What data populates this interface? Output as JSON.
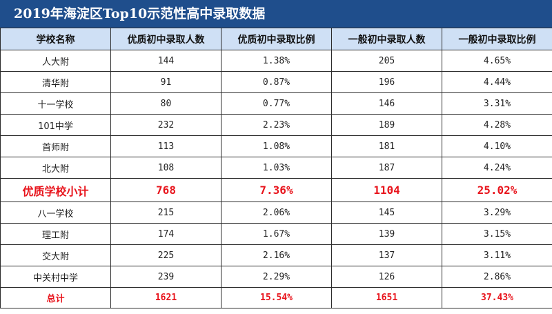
{
  "title": "2019年海淀区Top10示范性高中录取数据",
  "headers": [
    "学校名称",
    "优质初中录取人数",
    "优质初中录取比例",
    "一般初中录取人数",
    "一般初中录取比例"
  ],
  "rows_top": [
    [
      "人大附",
      "144",
      "1.38%",
      "205",
      "4.65%"
    ],
    [
      "清华附",
      "91",
      "0.87%",
      "196",
      "4.44%"
    ],
    [
      "十一学校",
      "80",
      "0.77%",
      "146",
      "3.31%"
    ],
    [
      "101中学",
      "232",
      "2.23%",
      "189",
      "4.28%"
    ],
    [
      "首师附",
      "113",
      "1.08%",
      "181",
      "4.10%"
    ],
    [
      "北大附",
      "108",
      "1.03%",
      "187",
      "4.24%"
    ]
  ],
  "subtotal": [
    "优质学校小计",
    "768",
    "7.36%",
    "1104",
    "25.02%"
  ],
  "rows_bottom": [
    [
      "八一学校",
      "215",
      "2.06%",
      "145",
      "3.29%"
    ],
    [
      "理工附",
      "174",
      "1.67%",
      "139",
      "3.15%"
    ],
    [
      "交大附",
      "225",
      "2.16%",
      "137",
      "3.11%"
    ],
    [
      "中关村中学",
      "239",
      "2.29%",
      "126",
      "2.86%"
    ]
  ],
  "total": [
    "总计",
    "1621",
    "15.54%",
    "1651",
    "37.43%"
  ],
  "colors": {
    "title_bg": "#1f4e8c",
    "header_bg": "#cfe0f5",
    "highlight": "#e8141c"
  }
}
